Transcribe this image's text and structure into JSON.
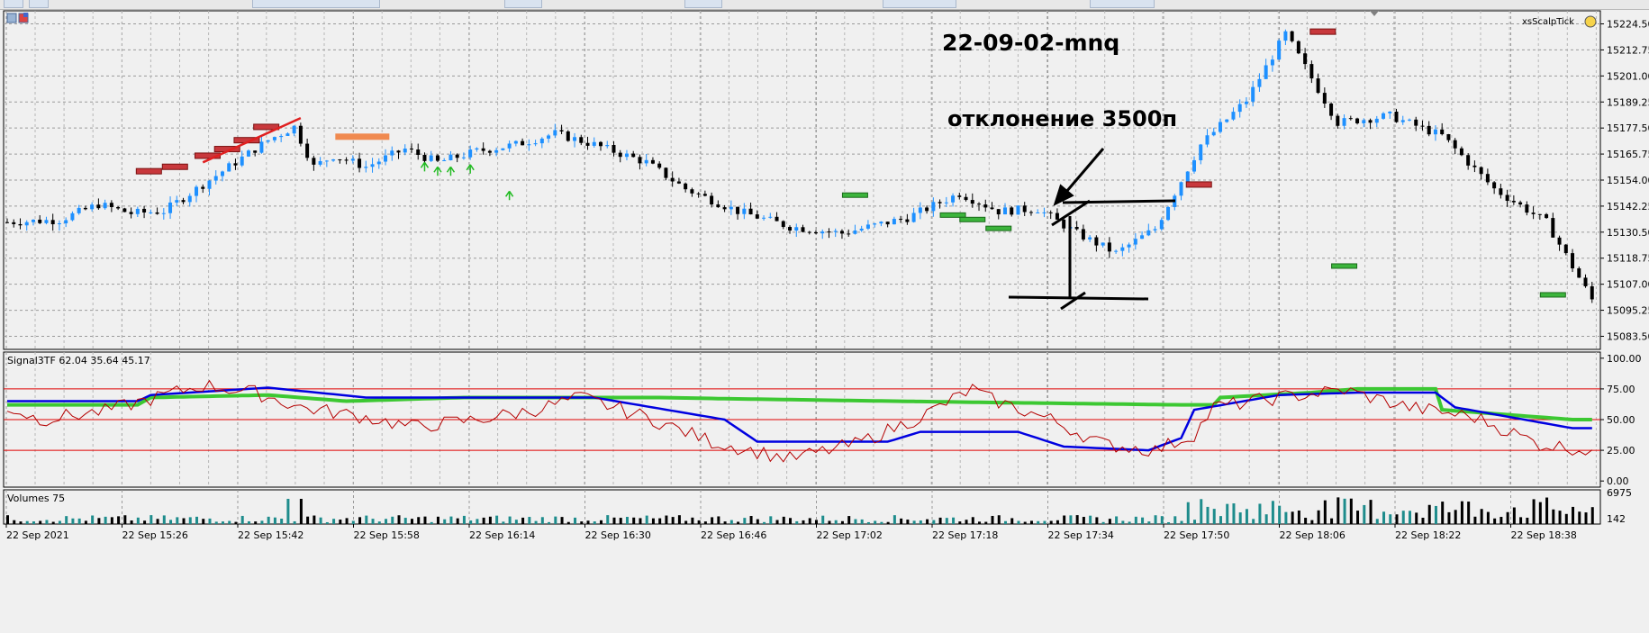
{
  "chart_data": [
    {
      "type": "candlestick",
      "title": "22-09-02-mnq",
      "annotation": "отклонение 3500п",
      "expert_label": "xsScalpTick",
      "y_ticks": [
        "15224.50",
        "15212.75",
        "15201.00",
        "15189.25",
        "15177.50",
        "15165.75",
        "15154.00",
        "15142.25",
        "15130.50",
        "15118.75",
        "15107.00",
        "15095.25",
        "15083.50"
      ],
      "ylim": [
        15077.6,
        15230.4
      ],
      "x_ticks": [
        "22 Sep 2021",
        "22 Sep 15:26",
        "22 Sep 15:42",
        "22 Sep 15:58",
        "22 Sep 16:14",
        "22 Sep 16:30",
        "22 Sep 16:46",
        "22 Sep 17:02",
        "22 Sep 17:18",
        "22 Sep 17:34",
        "22 Sep 17:50",
        "22 Sep 18:06",
        "22 Sep 18:22",
        "22 Sep 18:38"
      ],
      "close_anchors": [
        [
          0,
          15135
        ],
        [
          8,
          15136
        ],
        [
          14,
          15143
        ],
        [
          19,
          15139
        ],
        [
          24,
          15140
        ],
        [
          30,
          15152
        ],
        [
          40,
          15172
        ],
        [
          44,
          15178
        ],
        [
          47,
          15160
        ],
        [
          50,
          15165
        ],
        [
          55,
          15160
        ],
        [
          61,
          15168
        ],
        [
          66,
          15162
        ],
        [
          72,
          15167
        ],
        [
          78,
          15170
        ],
        [
          84,
          15175
        ],
        [
          90,
          15170
        ],
        [
          98,
          15162
        ],
        [
          104,
          15150
        ],
        [
          112,
          15140
        ],
        [
          120,
          15133
        ],
        [
          128,
          15130
        ],
        [
          138,
          15137
        ],
        [
          146,
          15148
        ],
        [
          152,
          15140
        ],
        [
          158,
          15141
        ],
        [
          164,
          15130
        ],
        [
          170,
          15121
        ],
        [
          176,
          15132
        ],
        [
          183,
          15170
        ],
        [
          190,
          15190
        ],
        [
          196,
          15220
        ],
        [
          204,
          15180
        ],
        [
          212,
          15183
        ],
        [
          220,
          15174
        ],
        [
          228,
          15150
        ],
        [
          236,
          15135
        ],
        [
          240,
          15115
        ],
        [
          243,
          15100
        ]
      ],
      "candle_count": 244,
      "bull_color": "#1e90ff",
      "bear_color": "#000000"
    },
    {
      "type": "line",
      "name": "Signal3TF 62.04 35.64 45.17",
      "y_ticks": [
        "100.00",
        "75.00",
        "50.00",
        "25.00",
        "0.00"
      ],
      "ylim": [
        -5,
        105
      ],
      "levels": [
        75,
        50,
        25
      ],
      "series": [
        {
          "color": "#3cc832",
          "values_anchor": [
            [
              0,
              62
            ],
            [
              20,
              62
            ],
            [
              22,
              68
            ],
            [
              40,
              70
            ],
            [
              52,
              65
            ],
            [
              70,
              68
            ],
            [
              100,
              68
            ],
            [
              110,
              67
            ],
            [
              150,
              64
            ],
            [
              180,
              62
            ],
            [
              185,
              62
            ],
            [
              186,
              68
            ],
            [
              200,
              72
            ],
            [
              207,
              75
            ],
            [
              219,
              75
            ],
            [
              220,
              58
            ],
            [
              240,
              50
            ],
            [
              243,
              50
            ]
          ]
        },
        {
          "color": "#0000e0",
          "values_anchor": [
            [
              0,
              65
            ],
            [
              20,
              65
            ],
            [
              22,
              70
            ],
            [
              40,
              76
            ],
            [
              55,
              68
            ],
            [
              90,
              68
            ],
            [
              110,
              50
            ],
            [
              115,
              32
            ],
            [
              135,
              32
            ],
            [
              140,
              40
            ],
            [
              155,
              40
            ],
            [
              162,
              28
            ],
            [
              175,
              25
            ],
            [
              180,
              35
            ],
            [
              182,
              58
            ],
            [
              195,
              70
            ],
            [
              207,
              72
            ],
            [
              219,
              72
            ],
            [
              222,
              60
            ],
            [
              240,
              43
            ],
            [
              243,
              43
            ]
          ]
        },
        {
          "color": "#b40000",
          "values_anchor": [
            [
              0,
              60
            ],
            [
              5,
              50
            ],
            [
              15,
              57
            ],
            [
              30,
              78
            ],
            [
              38,
              72
            ],
            [
              45,
              60
            ],
            [
              55,
              52
            ],
            [
              62,
              44
            ],
            [
              72,
              50
            ],
            [
              80,
              57
            ],
            [
              88,
              68
            ],
            [
              98,
              52
            ],
            [
              108,
              32
            ],
            [
              120,
              18
            ],
            [
              130,
              30
            ],
            [
              140,
              52
            ],
            [
              148,
              75
            ],
            [
              150,
              68
            ],
            [
              160,
              50
            ],
            [
              168,
              30
            ],
            [
              176,
              25
            ],
            [
              182,
              38
            ],
            [
              185,
              60
            ],
            [
              195,
              68
            ],
            [
              205,
              74
            ],
            [
              215,
              60
            ],
            [
              225,
              52
            ],
            [
              235,
              30
            ],
            [
              243,
              25
            ]
          ]
        }
      ]
    },
    {
      "type": "bar",
      "name": "Volumes 75",
      "y_ticks": [
        "6975",
        "142"
      ],
      "ylim": [
        142,
        6975
      ],
      "up_color": "#1e8c8c",
      "down_color": "#000000"
    }
  ]
}
